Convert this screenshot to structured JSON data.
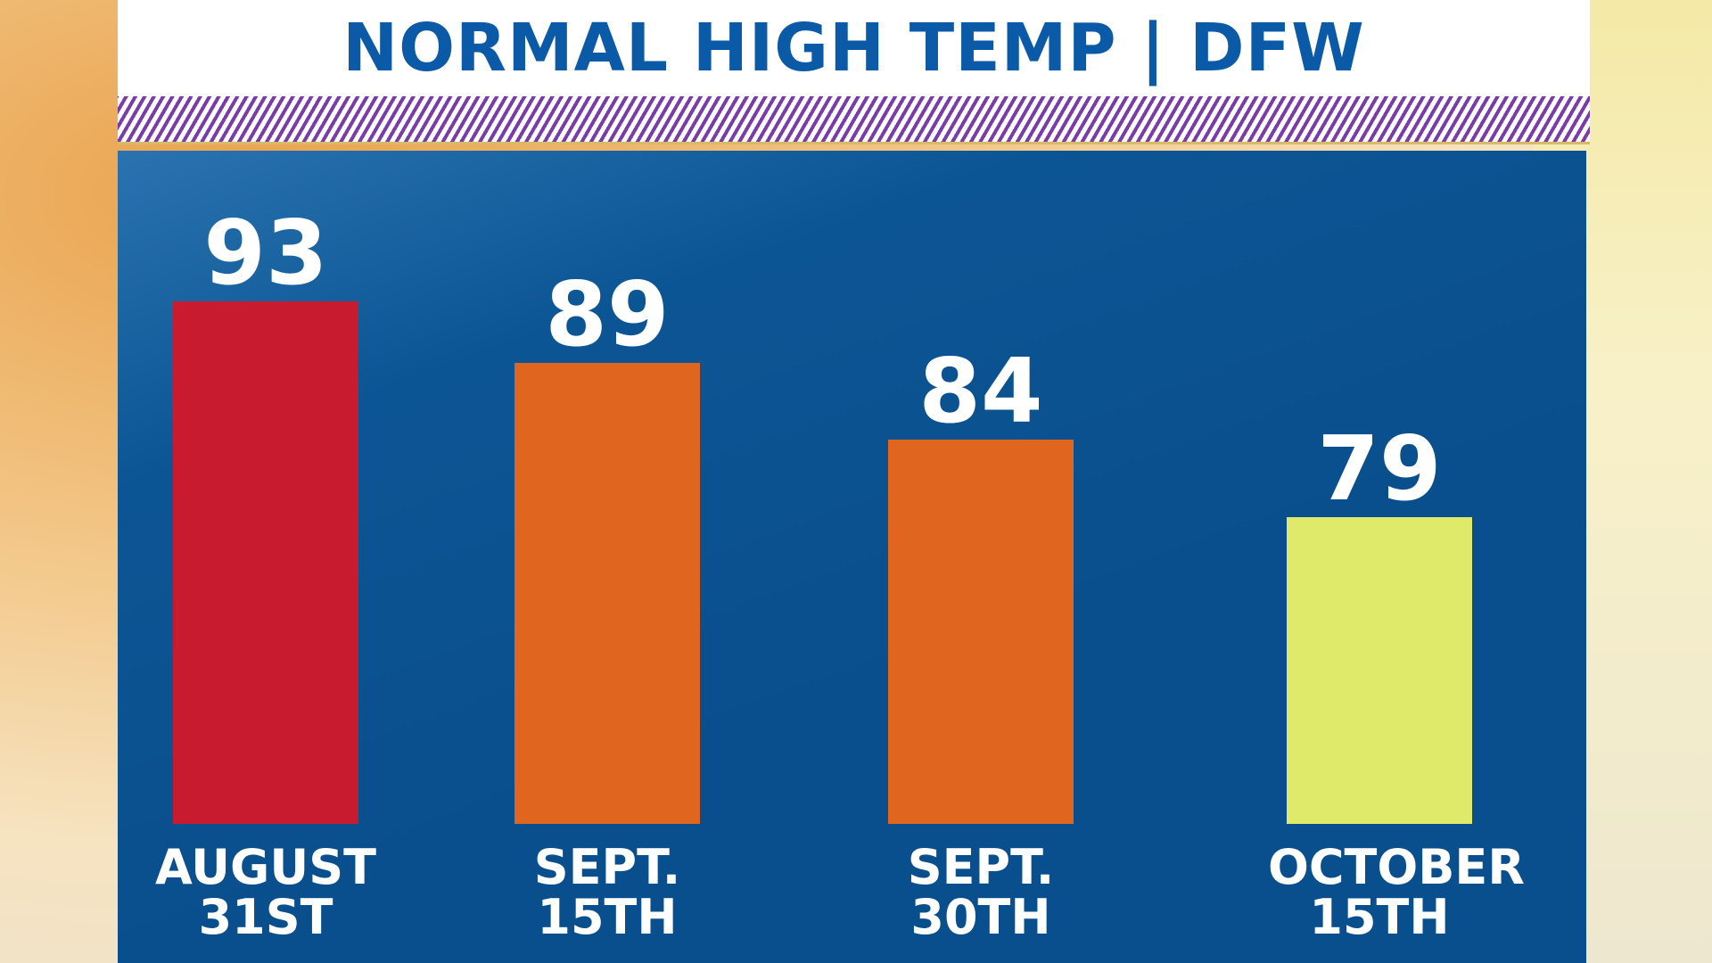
{
  "chart_data": {
    "type": "bar",
    "title": "NORMAL HIGH TEMP | DFW",
    "categories": [
      "AUGUST 31ST",
      "SEPT. 15TH",
      "SEPT. 30TH",
      "OCTOBER 15TH"
    ],
    "values": [
      93,
      89,
      84,
      79
    ],
    "colors": [
      "#c81b30",
      "#e0661f",
      "#e0661f",
      "#dfe96a"
    ],
    "ylim": [
      59,
      95
    ]
  }
}
